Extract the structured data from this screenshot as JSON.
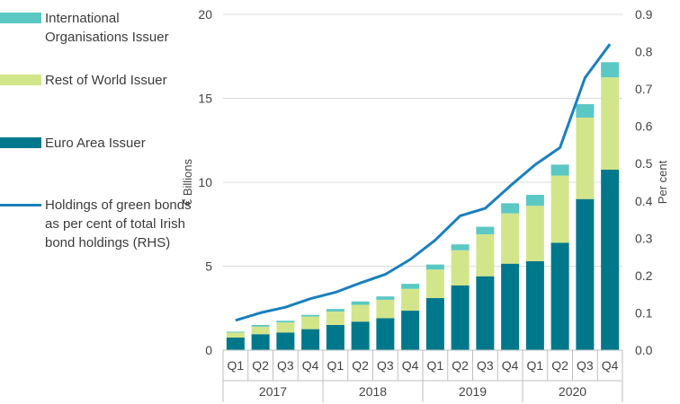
{
  "chart_data": {
    "type": "bar",
    "stacked": true,
    "categories": [
      "Q1",
      "Q2",
      "Q3",
      "Q4",
      "Q1",
      "Q2",
      "Q3",
      "Q4",
      "Q1",
      "Q2",
      "Q3",
      "Q4",
      "Q1",
      "Q2",
      "Q3",
      "Q4"
    ],
    "years": [
      "2017",
      "2018",
      "2019",
      "2020"
    ],
    "series": [
      {
        "name": "Euro Area Issuer",
        "color": "#00788c",
        "values": [
          0.75,
          0.95,
          1.05,
          1.25,
          1.5,
          1.7,
          1.9,
          2.35,
          3.1,
          3.85,
          4.4,
          5.15,
          5.3,
          6.4,
          9.0,
          10.75
        ]
      },
      {
        "name": "Rest of World Issuer",
        "color": "#d3e58a",
        "values": [
          0.3,
          0.45,
          0.6,
          0.75,
          0.8,
          1.0,
          1.1,
          1.3,
          1.7,
          2.1,
          2.5,
          3.0,
          3.3,
          4.0,
          4.85,
          5.5
        ]
      },
      {
        "name": "International Organisations Issuer",
        "color": "#5bc8c4",
        "values": [
          0.05,
          0.1,
          0.1,
          0.1,
          0.15,
          0.2,
          0.2,
          0.3,
          0.3,
          0.35,
          0.45,
          0.6,
          0.65,
          0.65,
          0.8,
          0.9
        ]
      }
    ],
    "line": {
      "name": "Holdings of green bonds as per cent of total Irish bond holdings (RHS)",
      "color": "#1a7fbf",
      "values": [
        0.08,
        0.1,
        0.115,
        0.138,
        0.155,
        0.18,
        0.203,
        0.243,
        0.295,
        0.36,
        0.38,
        0.44,
        0.497,
        0.543,
        0.73,
        0.82
      ]
    },
    "ylabel": "€ Billions",
    "y2label": "Per cent",
    "ylim": [
      0,
      20
    ],
    "y2lim": [
      0,
      0.9
    ],
    "yticks": [
      "0",
      "5",
      "10",
      "15",
      "20"
    ],
    "y2ticks": [
      "0.0",
      "0.1",
      "0.2",
      "0.3",
      "0.4",
      "0.5",
      "0.6",
      "0.7",
      "0.8",
      "0.9"
    ],
    "legend": [
      "International Organisations Issuer",
      "Rest of World Issuer",
      "Euro Area Issuer",
      "Holdings of green bonds as per cent of total Irish bond holdings (RHS)"
    ]
  }
}
